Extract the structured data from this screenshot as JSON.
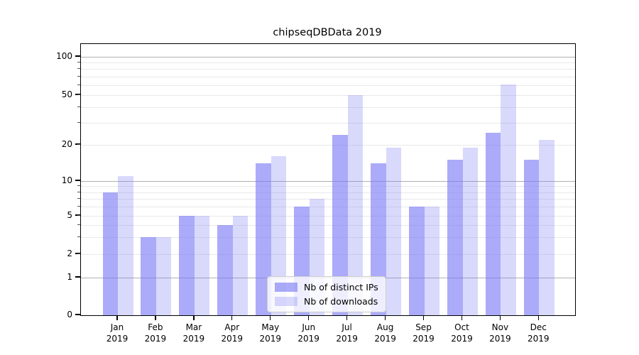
{
  "figure": {
    "title": "chipseqDBData 2019"
  },
  "chart_data": {
    "type": "bar",
    "title": "chipseqDBData 2019",
    "categories": [
      "Jan 2019",
      "Feb 2019",
      "Mar 2019",
      "Apr 2019",
      "May 2019",
      "Jun 2019",
      "Jul 2019",
      "Aug 2019",
      "Sep 2019",
      "Oct 2019",
      "Nov 2019",
      "Dec 2019"
    ],
    "series": [
      {
        "name": "Nb of distinct IPs",
        "color": "rgba(120,120,245,0.62)",
        "values": [
          8,
          3,
          5,
          4,
          14,
          6,
          24,
          14,
          6,
          15,
          25,
          15
        ]
      },
      {
        "name": "Nb of downloads",
        "color": "rgba(120,120,245,0.28)",
        "values": [
          11,
          3,
          5,
          5,
          16,
          7,
          50,
          19,
          6,
          19,
          61,
          22
        ]
      }
    ],
    "xlabel": "",
    "ylabel": "",
    "y_axis": {
      "scale": "symlog",
      "tick_labels": [
        "0",
        "1",
        "2",
        "5",
        "10",
        "20",
        "50",
        "100"
      ],
      "range_top": 130
    },
    "grid": "horizontal log minors on",
    "legend_position": "lower center inside plot",
    "colors": {
      "bar_base": "#7878f5",
      "gridline_minor": "#e9e9e9",
      "gridline_major": "#b0b0b0",
      "axis": "#000000"
    }
  }
}
